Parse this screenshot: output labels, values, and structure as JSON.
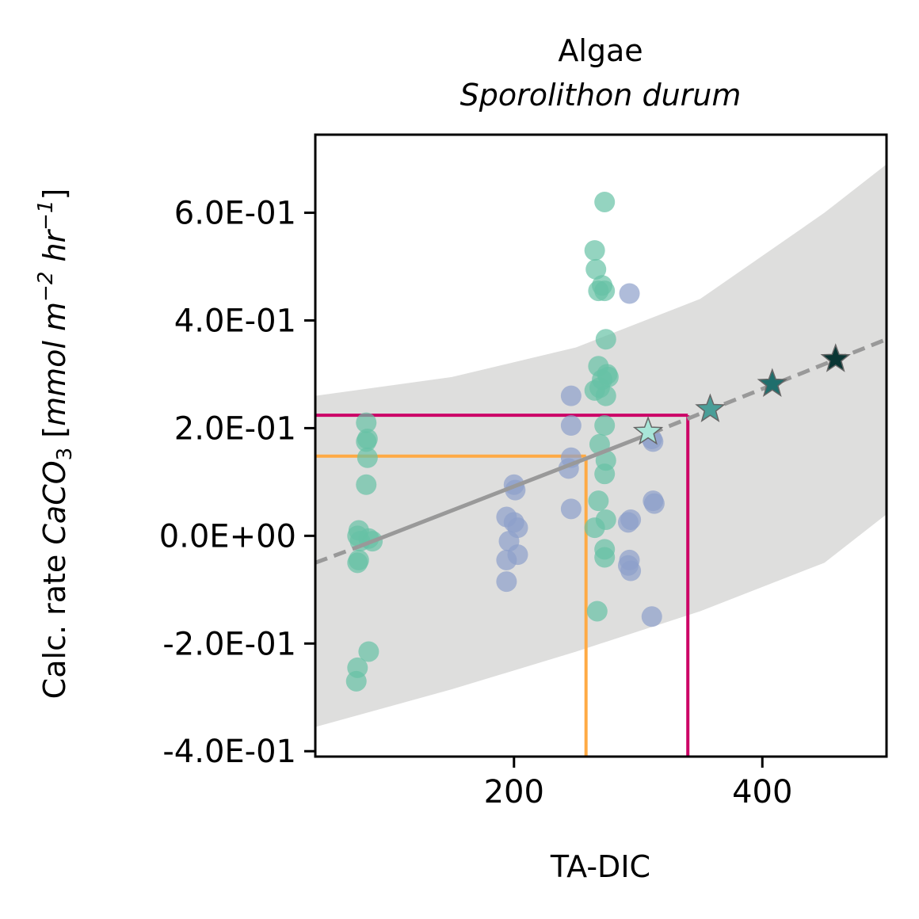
{
  "chart_data": {
    "type": "scatter",
    "title": "Algae",
    "subtitle": "Sporolithon durum",
    "xlabel": "TA-DIC",
    "ylabel": {
      "prefix": "Calc. rate ",
      "species": "CaCO",
      "sub": "3",
      "unit_open": " [",
      "unit_mmol": "mmol m",
      "exp1": "−2",
      "unit_hr": " hr",
      "exp2": "−1",
      "unit_close": "]"
    },
    "xlim": [
      40,
      500
    ],
    "ylim": [
      -0.41,
      0.745
    ],
    "xticks": [
      {
        "value": 200,
        "label": "200"
      },
      {
        "value": 400,
        "label": "400"
      }
    ],
    "yticks": [
      {
        "value": -0.4,
        "label": "-4.0E-01"
      },
      {
        "value": -0.2,
        "label": "-2.0E-01"
      },
      {
        "value": 0.0,
        "label": "0.0E+00"
      },
      {
        "value": 0.2,
        "label": "2.0E-01"
      },
      {
        "value": 0.4,
        "label": "4.0E-01"
      },
      {
        "value": 0.6,
        "label": "6.0E-01"
      }
    ],
    "colors": {
      "green": "#66c2a5",
      "blue": "#8da0cb",
      "band": "#dededd",
      "fit": "#999999",
      "orange": "#ffaa44",
      "magenta": "#cc0066"
    },
    "confidence_band": {
      "x": [
        40,
        150,
        250,
        350,
        450,
        500
      ],
      "lower": [
        -0.355,
        -0.285,
        -0.215,
        -0.14,
        -0.05,
        0.04
      ],
      "upper": [
        0.26,
        0.295,
        0.35,
        0.44,
        0.6,
        0.69
      ]
    },
    "fit_line": {
      "solid": {
        "x0": 75,
        "y0": -0.02,
        "x1": 310,
        "y1": 0.19
      },
      "dashed_left": {
        "x0": 40,
        "y0": -0.05,
        "x1": 75,
        "y1": -0.02
      },
      "dashed_right": {
        "x0": 310,
        "y0": 0.19,
        "x1": 500,
        "y1": 0.365
      }
    },
    "reference_lines": [
      {
        "color": "orange",
        "x": 258,
        "y": 0.148
      },
      {
        "color": "magenta",
        "x": 340,
        "y": 0.224
      }
    ],
    "series": [
      {
        "color": "green",
        "points": [
          [
            81,
            0.21
          ],
          [
            82,
            0.18
          ],
          [
            81,
            0.175
          ],
          [
            82,
            0.145
          ],
          [
            81,
            0.095
          ],
          [
            75,
            0.01
          ],
          [
            74,
            0.0
          ],
          [
            76,
            -0.01
          ],
          [
            83,
            -0.005
          ],
          [
            86,
            -0.01
          ],
          [
            75,
            -0.045
          ],
          [
            74,
            -0.05
          ],
          [
            83,
            -0.215
          ],
          [
            74,
            -0.245
          ],
          [
            73,
            -0.27
          ],
          [
            273,
            0.62
          ],
          [
            265,
            0.53
          ],
          [
            266,
            0.495
          ],
          [
            271,
            0.465
          ],
          [
            268,
            0.455
          ],
          [
            273,
            0.455
          ],
          [
            274,
            0.365
          ],
          [
            268,
            0.315
          ],
          [
            275,
            0.3
          ],
          [
            271,
            0.29
          ],
          [
            276,
            0.295
          ],
          [
            269,
            0.275
          ],
          [
            265,
            0.27
          ],
          [
            274,
            0.26
          ],
          [
            273,
            0.205
          ],
          [
            269,
            0.17
          ],
          [
            274,
            0.14
          ],
          [
            273,
            0.115
          ],
          [
            268,
            0.065
          ],
          [
            274,
            0.03
          ],
          [
            265,
            0.015
          ],
          [
            273,
            -0.025
          ],
          [
            273,
            -0.04
          ],
          [
            267,
            -0.14
          ]
        ]
      },
      {
        "color": "blue",
        "points": [
          [
            293,
            0.45
          ],
          [
            246,
            0.26
          ],
          [
            246,
            0.205
          ],
          [
            246,
            0.145
          ],
          [
            244,
            0.125
          ],
          [
            311,
            0.18
          ],
          [
            312,
            0.175
          ],
          [
            200,
            0.095
          ],
          [
            201,
            0.085
          ],
          [
            246,
            0.05
          ],
          [
            312,
            0.065
          ],
          [
            313,
            0.06
          ],
          [
            194,
            0.035
          ],
          [
            200,
            0.025
          ],
          [
            203,
            0.015
          ],
          [
            294,
            0.03
          ],
          [
            292,
            0.025
          ],
          [
            196,
            -0.01
          ],
          [
            194,
            -0.045
          ],
          [
            203,
            -0.035
          ],
          [
            293,
            -0.045
          ],
          [
            292,
            -0.055
          ],
          [
            294,
            -0.065
          ],
          [
            194,
            -0.085
          ],
          [
            311,
            -0.15
          ]
        ]
      }
    ],
    "stars": [
      {
        "x": 308,
        "y": 0.193,
        "color": "#a8e6d8"
      },
      {
        "x": 358,
        "y": 0.235,
        "color": "#4a9e98"
      },
      {
        "x": 408,
        "y": 0.282,
        "color": "#1f6e6c"
      },
      {
        "x": 459,
        "y": 0.328,
        "color": "#0a3634"
      }
    ]
  }
}
